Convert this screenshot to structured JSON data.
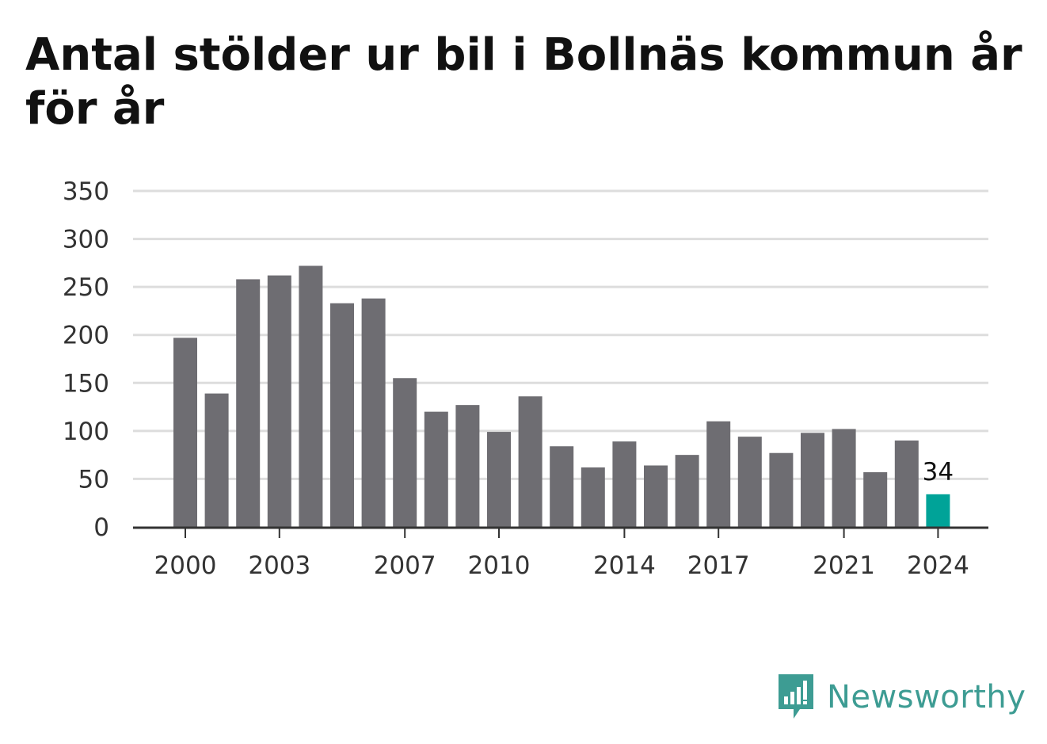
{
  "title": "Antal stölder ur bil i Bollnäs kommun år för år",
  "brand": {
    "name": "Newsworthy",
    "icon": "newsworthy-logo-icon",
    "color": "#3d9c93"
  },
  "chart_data": {
    "type": "bar",
    "title": "Antal stölder ur bil i Bollnäs kommun år för år",
    "xlabel": "",
    "ylabel": "",
    "ylim": [
      0,
      350
    ],
    "yticks": [
      0,
      50,
      100,
      150,
      200,
      250,
      300,
      350
    ],
    "xtick_labels": [
      "2000",
      "2003",
      "2007",
      "2010",
      "2014",
      "2017",
      "2021",
      "2024"
    ],
    "grid": true,
    "categories": [
      "2000",
      "2001",
      "2002",
      "2003",
      "2004",
      "2005",
      "2006",
      "2007",
      "2008",
      "2009",
      "2010",
      "2011",
      "2012",
      "2013",
      "2014",
      "2015",
      "2016",
      "2017",
      "2018",
      "2019",
      "2020",
      "2021",
      "2022",
      "2023",
      "2024"
    ],
    "values": [
      197,
      139,
      258,
      262,
      272,
      233,
      238,
      155,
      120,
      127,
      99,
      136,
      84,
      62,
      89,
      64,
      75,
      110,
      94,
      77,
      98,
      102,
      57,
      90,
      34
    ],
    "bar_color": "#6e6d72",
    "highlight_color": "#00a398",
    "highlight_category": "2024",
    "annotations": [
      {
        "category": "2024",
        "text": "34"
      }
    ]
  }
}
